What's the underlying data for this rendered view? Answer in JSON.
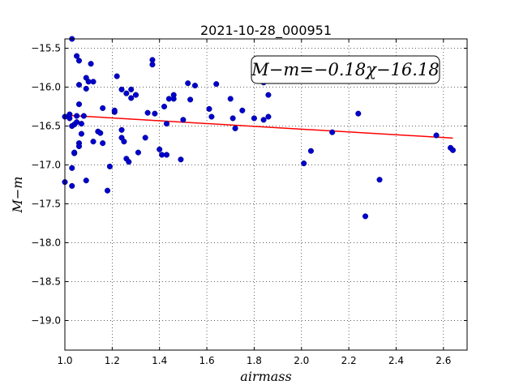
{
  "chart_data": {
    "type": "scatter",
    "title": "2021-10-28_000951",
    "xlabel": "airmass",
    "ylabel": "M−m",
    "xlim": [
      1.0,
      2.7
    ],
    "ylim": [
      -19.38,
      -15.38
    ],
    "y_inverted": true,
    "grid": true,
    "grid_style": "dotted",
    "x_ticks": [
      1.0,
      1.2,
      1.4,
      1.6,
      1.8,
      2.0,
      2.2,
      2.4,
      2.6
    ],
    "x_tick_labels": [
      "1.0",
      "1.2",
      "1.4",
      "1.6",
      "1.8",
      "2.0",
      "2.2",
      "2.4",
      "2.6"
    ],
    "y_ticks": [
      -15.5,
      -16.0,
      -16.5,
      -17.0,
      -17.5,
      -18.0,
      -18.5,
      -19.0
    ],
    "y_tick_labels": [
      "−15.5",
      "−16.0",
      "−16.5",
      "−17.0",
      "−17.5",
      "−18.0",
      "−18.5",
      "−19.0"
    ],
    "annotation": "M−m=−0.18χ−16.18",
    "marker_color": "#0000cc",
    "fit_color": "#ff0000",
    "fit": {
      "slope": -0.18,
      "intercept": -16.18,
      "x_range": [
        1.0,
        2.64
      ]
    },
    "points": [
      {
        "x": 1.0,
        "y": -16.38
      },
      {
        "x": 1.0,
        "y": -17.22
      },
      {
        "x": 1.02,
        "y": -16.4
      },
      {
        "x": 1.02,
        "y": -16.35
      },
      {
        "x": 1.03,
        "y": -15.38
      },
      {
        "x": 1.03,
        "y": -16.5
      },
      {
        "x": 1.03,
        "y": -17.04
      },
      {
        "x": 1.03,
        "y": -17.27
      },
      {
        "x": 1.04,
        "y": -16.48
      },
      {
        "x": 1.04,
        "y": -16.85
      },
      {
        "x": 1.04,
        "y": -16.84
      },
      {
        "x": 1.05,
        "y": -15.6
      },
      {
        "x": 1.05,
        "y": -16.37
      },
      {
        "x": 1.05,
        "y": -16.45
      },
      {
        "x": 1.06,
        "y": -15.66
      },
      {
        "x": 1.06,
        "y": -15.97
      },
      {
        "x": 1.06,
        "y": -16.22
      },
      {
        "x": 1.06,
        "y": -16.72
      },
      {
        "x": 1.06,
        "y": -16.76
      },
      {
        "x": 1.07,
        "y": -16.6
      },
      {
        "x": 1.07,
        "y": -16.47
      },
      {
        "x": 1.08,
        "y": -16.37
      },
      {
        "x": 1.09,
        "y": -15.88
      },
      {
        "x": 1.09,
        "y": -16.02
      },
      {
        "x": 1.09,
        "y": -17.2
      },
      {
        "x": 1.1,
        "y": -15.93
      },
      {
        "x": 1.11,
        "y": -15.7
      },
      {
        "x": 1.12,
        "y": -15.93
      },
      {
        "x": 1.12,
        "y": -16.7
      },
      {
        "x": 1.14,
        "y": -16.57
      },
      {
        "x": 1.15,
        "y": -16.59
      },
      {
        "x": 1.16,
        "y": -16.27
      },
      {
        "x": 1.16,
        "y": -16.72
      },
      {
        "x": 1.18,
        "y": -17.33
      },
      {
        "x": 1.19,
        "y": -17.02
      },
      {
        "x": 1.21,
        "y": -16.32
      },
      {
        "x": 1.21,
        "y": -16.3
      },
      {
        "x": 1.22,
        "y": -15.86
      },
      {
        "x": 1.24,
        "y": -16.03
      },
      {
        "x": 1.24,
        "y": -16.55
      },
      {
        "x": 1.24,
        "y": -16.65
      },
      {
        "x": 1.25,
        "y": -16.7
      },
      {
        "x": 1.26,
        "y": -16.08
      },
      {
        "x": 1.26,
        "y": -16.92
      },
      {
        "x": 1.27,
        "y": -16.96
      },
      {
        "x": 1.28,
        "y": -16.14
      },
      {
        "x": 1.28,
        "y": -16.03
      },
      {
        "x": 1.3,
        "y": -16.1
      },
      {
        "x": 1.31,
        "y": -16.84
      },
      {
        "x": 1.34,
        "y": -16.65
      },
      {
        "x": 1.35,
        "y": -16.33
      },
      {
        "x": 1.37,
        "y": -15.65
      },
      {
        "x": 1.37,
        "y": -15.71
      },
      {
        "x": 1.38,
        "y": -16.34
      },
      {
        "x": 1.4,
        "y": -16.8
      },
      {
        "x": 1.41,
        "y": -16.87
      },
      {
        "x": 1.42,
        "y": -16.25
      },
      {
        "x": 1.43,
        "y": -16.47
      },
      {
        "x": 1.43,
        "y": -16.87
      },
      {
        "x": 1.44,
        "y": -16.15
      },
      {
        "x": 1.46,
        "y": -16.1
      },
      {
        "x": 1.46,
        "y": -16.15
      },
      {
        "x": 1.49,
        "y": -16.93
      },
      {
        "x": 1.5,
        "y": -16.42
      },
      {
        "x": 1.52,
        "y": -15.95
      },
      {
        "x": 1.53,
        "y": -16.16
      },
      {
        "x": 1.55,
        "y": -15.98
      },
      {
        "x": 1.61,
        "y": -16.28
      },
      {
        "x": 1.62,
        "y": -16.38
      },
      {
        "x": 1.64,
        "y": -15.96
      },
      {
        "x": 1.7,
        "y": -16.15
      },
      {
        "x": 1.71,
        "y": -16.4
      },
      {
        "x": 1.72,
        "y": -16.53
      },
      {
        "x": 1.75,
        "y": -16.3
      },
      {
        "x": 1.8,
        "y": -16.4
      },
      {
        "x": 1.84,
        "y": -16.42
      },
      {
        "x": 1.84,
        "y": -15.94
      },
      {
        "x": 1.86,
        "y": -16.1
      },
      {
        "x": 1.86,
        "y": -16.38
      },
      {
        "x": 2.01,
        "y": -16.98
      },
      {
        "x": 2.04,
        "y": -16.82
      },
      {
        "x": 2.13,
        "y": -16.58
      },
      {
        "x": 2.24,
        "y": -16.34
      },
      {
        "x": 2.27,
        "y": -17.66
      },
      {
        "x": 2.33,
        "y": -17.19
      },
      {
        "x": 2.57,
        "y": -16.62
      },
      {
        "x": 2.63,
        "y": -16.78
      },
      {
        "x": 2.64,
        "y": -16.81
      }
    ]
  }
}
